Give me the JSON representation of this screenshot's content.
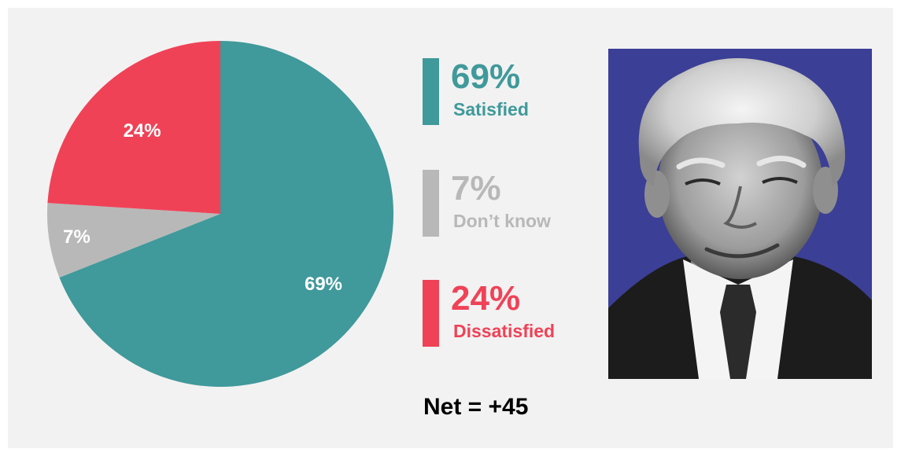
{
  "chart_data": {
    "type": "pie",
    "slices": [
      {
        "name": "Satisfied",
        "value": 69,
        "label": "69%",
        "color": "#40999a"
      },
      {
        "name": "Don’t know",
        "value": 7,
        "label": "7%",
        "color": "#b8b8b8"
      },
      {
        "name": "Dissatisfied",
        "value": 24,
        "label": "24%",
        "color": "#f04257"
      }
    ],
    "start": "12 o'clock",
    "direction": "clockwise"
  },
  "legend": {
    "items": [
      {
        "pct": "69%",
        "name": "Satisfied",
        "color": "#40999a"
      },
      {
        "pct": "7%",
        "name": "Don’t know",
        "color": "#b8b8b8"
      },
      {
        "pct": "24%",
        "name": "Dissatisfied",
        "color": "#f04257"
      }
    ]
  },
  "net": "Net = +45",
  "portrait": {
    "description_icon": "portrait-photo",
    "background_color": "#3b3f95"
  },
  "colors": {
    "panel": "#f2f2f2",
    "page": "#ffffff"
  }
}
